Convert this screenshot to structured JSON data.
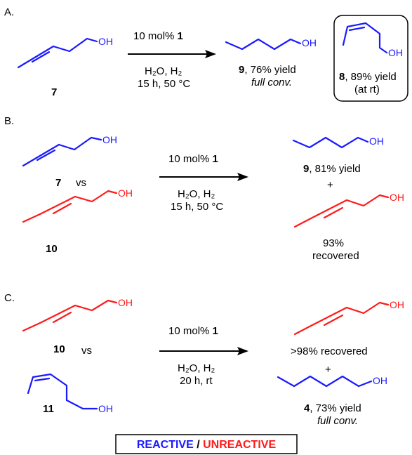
{
  "panels": [
    {
      "letter": "A.",
      "reactant_label": "7",
      "conditions_top_pre": "10 mol% ",
      "conditions_top_cat": "1",
      "conditions_bot_1": "H₂O, H₂",
      "conditions_bot_2": "15 h, 50 °C",
      "product_num": "9",
      "product_text": ", 76% yield",
      "product_note": "full conv.",
      "box_num": "8",
      "box_text": ", 89% yield",
      "box_note": "(at rt)"
    },
    {
      "letter": "B.",
      "reactant1_label": "7",
      "vs": "vs",
      "reactant2_label": "10",
      "conditions_top_pre": "10 mol% ",
      "conditions_top_cat": "1",
      "conditions_bot_1": "H₂O, H₂",
      "conditions_bot_2": "15 h, 50 °C",
      "product_num": "9",
      "product_text": ", 81% yield",
      "plus": "+",
      "recovered_1": "93%",
      "recovered_2": "recovered"
    },
    {
      "letter": "C.",
      "reactant1_label": "10",
      "vs": "vs",
      "reactant2_label": "11",
      "conditions_top_pre": "10 mol% ",
      "conditions_top_cat": "1",
      "conditions_bot_1": "H₂O, H₂",
      "conditions_bot_2": "20 h, rt",
      "recovered": ">98% recovered",
      "plus": "+",
      "product_num": "4",
      "product_text": ", 73% yield",
      "product_note": "full conv."
    }
  ],
  "atom_label": "OH",
  "legend": {
    "reactive": "REACTIVE",
    "separator": " / ",
    "unreactive": "UNREACTIVE"
  },
  "colors": {
    "reactive": "#1a1aff",
    "unreactive": "#ff1a1a"
  }
}
